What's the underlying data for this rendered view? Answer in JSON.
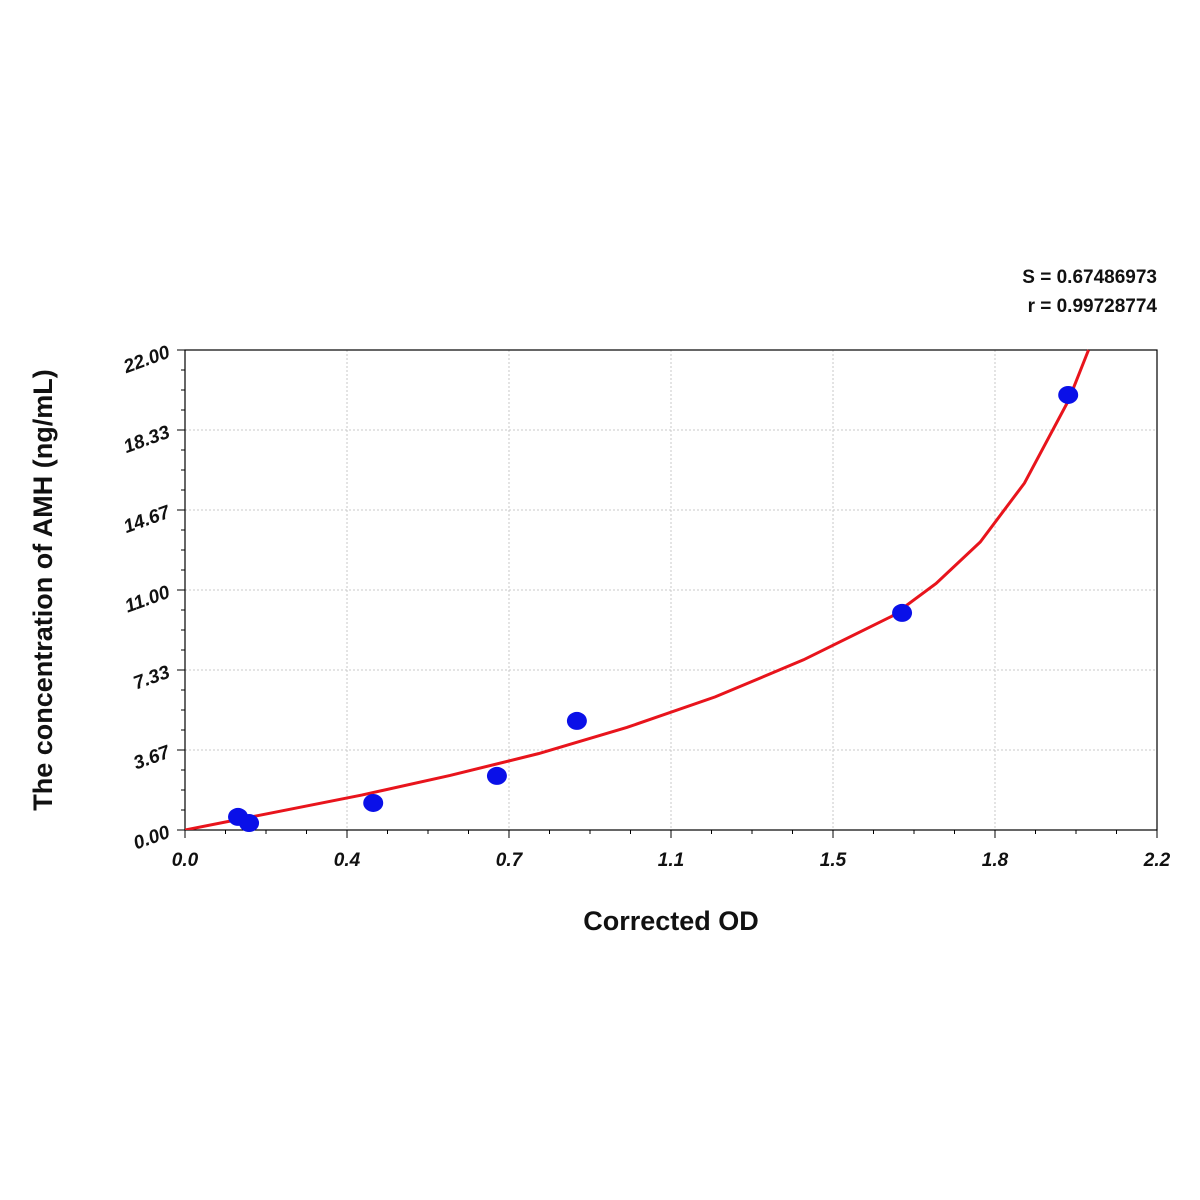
{
  "chart_data": {
    "type": "scatter",
    "annotations": [
      "S = 0.67486973",
      "r = 0.99728774"
    ],
    "x_label": "Corrected OD",
    "y_label": "The concentration of AMH (ng/mL)",
    "xlim": [
      0,
      2.2
    ],
    "ylim": [
      0,
      22
    ],
    "xticks": [
      {
        "value": 0,
        "label": "0.0"
      },
      {
        "value": 0.3667,
        "label": "0.4"
      },
      {
        "value": 0.7333,
        "label": "0.7"
      },
      1.1,
      {
        "value": 1.4667,
        "label": "1.5"
      },
      {
        "value": 1.8333,
        "label": "1.8"
      },
      2.2
    ],
    "yticks": [
      {
        "value": 0,
        "label": "0.00"
      },
      {
        "value": 3.6667,
        "label": "3.67"
      },
      {
        "value": 7.3333,
        "label": "7.33"
      },
      {
        "value": 11,
        "label": "11.00"
      },
      {
        "value": 14.6667,
        "label": "14.67"
      },
      {
        "value": 18.3333,
        "label": "18.33"
      },
      {
        "value": 22,
        "label": "22.00"
      }
    ],
    "grid": true,
    "series": [
      {
        "type": "scatter",
        "color": "#0a10e8",
        "x": [
          0.12,
          0.145,
          0.426,
          0.706,
          0.887,
          1.623,
          1.999
        ],
        "values": [
          0.6,
          0.32,
          1.24,
          2.48,
          5.0,
          9.95,
          19.94
        ]
      },
      {
        "type": "line",
        "color": "#e8141c",
        "x": [
          0,
          0.2,
          0.4,
          0.6,
          0.8,
          1.0,
          1.2,
          1.4,
          1.6,
          1.7,
          1.8,
          1.9,
          2.0,
          2.045
        ],
        "values": [
          0,
          0.8,
          1.6,
          2.5,
          3.5,
          4.7,
          6.1,
          7.8,
          9.8,
          11.3,
          13.2,
          15.9,
          19.7,
          22.0
        ]
      }
    ]
  }
}
